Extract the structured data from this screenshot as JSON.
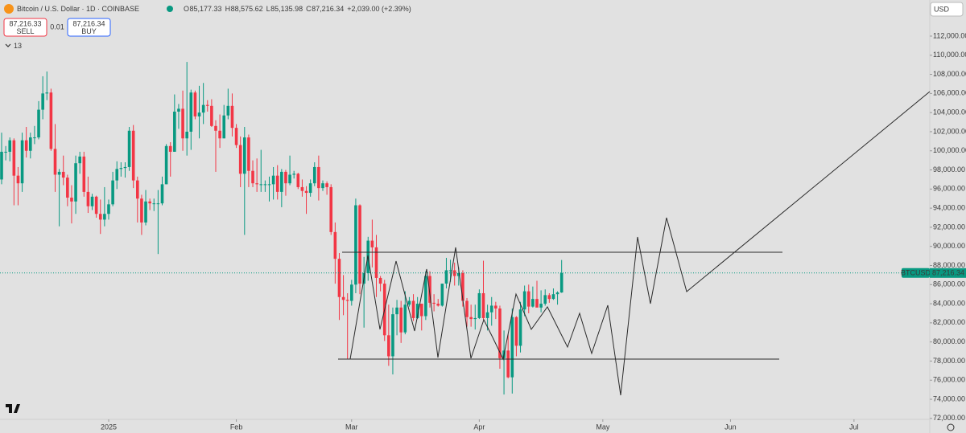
{
  "chart_data": {
    "type": "candlestick",
    "title": "Bitcoin / U.S. Dollar · 1D · COINBASE",
    "ohlc_labels": [
      "O",
      "H",
      "L",
      "C"
    ],
    "ohlc_text": [
      "85,177.33",
      "88,575.62",
      "85,135.98",
      "87,216.34"
    ],
    "change": "+2,039.00 (+2.39%)",
    "sell_price": "87,216.33",
    "sell_label": "SELL",
    "spread": "0.01",
    "buy_price": "87,216.34",
    "buy_label": "BUY",
    "indicator_count": "13",
    "currency": "USD",
    "symbol_tag": "BTCUSD",
    "last_price": {
      "value": 87216.34,
      "label": "87,216.34"
    },
    "up_color": "#089981",
    "down_color": "#f23645",
    "grid": false,
    "xlim": [
      -0.39,
      225.4
    ],
    "xticks": [
      {
        "value": 26,
        "label": "2025"
      },
      {
        "value": 57,
        "label": "Feb"
      },
      {
        "value": 85,
        "label": "Mar"
      },
      {
        "value": 116,
        "label": "Apr"
      },
      {
        "value": 146,
        "label": "May"
      },
      {
        "value": 177,
        "label": "Jun"
      },
      {
        "value": 207,
        "label": "Jul"
      }
    ],
    "ylim": [
      72070,
      115780
    ],
    "yticks": [
      {
        "value": 72000,
        "label": "72,000.00"
      },
      {
        "value": 74000,
        "label": "74,000.00"
      },
      {
        "value": 76000,
        "label": "76,000.00"
      },
      {
        "value": 78000,
        "label": "78,000.00"
      },
      {
        "value": 80000,
        "label": "80,000.00"
      },
      {
        "value": 82000,
        "label": "82,000.00"
      },
      {
        "value": 84000,
        "label": "84,000.00"
      },
      {
        "value": 86000,
        "label": "86,000.00"
      },
      {
        "value": 88000,
        "label": "88,000.00"
      },
      {
        "value": 90000,
        "label": "90,000.00"
      },
      {
        "value": 92000,
        "label": "92,000.00"
      },
      {
        "value": 94000,
        "label": "94,000.00"
      },
      {
        "value": 96000,
        "label": "96,000.00"
      },
      {
        "value": 98000,
        "label": "98,000.00"
      },
      {
        "value": 100000,
        "label": "100,000.00"
      },
      {
        "value": 102000,
        "label": "102,000.00"
      },
      {
        "value": 104000,
        "label": "104,000.00"
      },
      {
        "value": 106000,
        "label": "106,000.00"
      },
      {
        "value": 108000,
        "label": "108,000.00"
      },
      {
        "value": 110000,
        "label": "110,000.00"
      },
      {
        "value": 112000,
        "label": "112,000.00"
      }
    ],
    "open": [
      97000,
      99900,
      99900,
      101100,
      97400,
      96600,
      101100,
      100000,
      101400,
      101400,
      104300,
      106000,
      106100,
      100200,
      97500,
      97800,
      97200,
      95100,
      94700,
      98700,
      99400,
      95700,
      94200,
      95200,
      93400,
      92800,
      93400,
      94400,
      96900,
      98100,
      98200,
      98300,
      102100,
      96900,
      95000,
      92500,
      94700,
      94500,
      94500,
      94500,
      96500,
      100500,
      99900,
      104100,
      104400,
      101300,
      102000,
      106100,
      103600,
      104000,
      104800,
      104700,
      102600,
      102100,
      101300,
      103700,
      104700,
      102400,
      100600,
      97600,
      101400,
      97900,
      96600,
      96500,
      96500,
      96500,
      96500,
      97400,
      95700,
      97800,
      96600,
      97500,
      97600,
      96200,
      95800,
      95600,
      96600,
      98300,
      96100,
      96600,
      96200,
      91500,
      88700,
      84700,
      84400,
      84300,
      86000,
      94300,
      86100,
      87200,
      90600,
      89900,
      86700,
      86100,
      80700,
      78500,
      82900,
      83600,
      81000,
      83900,
      84300,
      82500,
      84000,
      82700,
      86900,
      84100,
      84000,
      83800,
      86100,
      87500,
      87500,
      86900,
      87200,
      84300,
      82600,
      82400,
      82500,
      85100,
      82500,
      83100,
      83800,
      83500,
      78300,
      79100,
      76300,
      82600,
      79600,
      83400,
      85300,
      83700,
      84500,
      83600,
      84000,
      84900,
      84500,
      85000,
      85177.33
    ],
    "high": [
      101900,
      100500,
      101400,
      101300,
      98300,
      101900,
      102500,
      101900,
      102600,
      105200,
      107800,
      108300,
      106500,
      102800,
      98100,
      99500,
      97500,
      96400,
      99500,
      99900,
      99900,
      97300,
      95500,
      95300,
      94900,
      96200,
      94900,
      97800,
      98900,
      98800,
      98800,
      102500,
      102700,
      97300,
      95400,
      95900,
      95000,
      95000,
      95900,
      97300,
      100700,
      100900,
      105900,
      104900,
      106300,
      109300,
      106400,
      106300,
      106800,
      107100,
      105300,
      105400,
      103200,
      103800,
      104800,
      106500,
      106000,
      102800,
      101500,
      102500,
      101700,
      99000,
      99200,
      100100,
      96900,
      97300,
      98300,
      98500,
      98100,
      98000,
      99500,
      97900,
      97700,
      97000,
      96300,
      97000,
      98800,
      99500,
      96900,
      96800,
      96500,
      92500,
      89300,
      87000,
      85100,
      86500,
      95000,
      94400,
      88900,
      91000,
      92800,
      91200,
      86900,
      86500,
      83900,
      83600,
      84400,
      84300,
      85300,
      84700,
      85000,
      84700,
      84000,
      87400,
      87400,
      85000,
      84500,
      86100,
      88800,
      88600,
      88300,
      87800,
      87500,
      84600,
      83900,
      83900,
      85500,
      88500,
      83900,
      84700,
      84200,
      83800,
      81200,
      80800,
      83500,
      82700,
      84200,
      85900,
      86000,
      85800,
      86400,
      85400,
      85500,
      85100,
      85600,
      85300,
      88575.62
    ],
    "low": [
      96500,
      99000,
      98900,
      94300,
      94300,
      95700,
      99300,
      99200,
      100700,
      101200,
      103300,
      105300,
      100000,
      95700,
      92100,
      96400,
      94200,
      92400,
      93400,
      97600,
      95200,
      93500,
      93800,
      93000,
      91300,
      92100,
      92800,
      94200,
      96000,
      97300,
      97200,
      97900,
      96100,
      92500,
      91200,
      92200,
      93800,
      93700,
      89200,
      94300,
      96500,
      97300,
      99900,
      102300,
      100000,
      99500,
      100100,
      103300,
      101300,
      102800,
      104100,
      102500,
      97800,
      100300,
      101300,
      103300,
      101500,
      100300,
      96200,
      91200,
      96200,
      96200,
      95700,
      95700,
      95700,
      94700,
      94900,
      94900,
      94100,
      95300,
      96400,
      97100,
      96000,
      95200,
      93400,
      95200,
      96300,
      94800,
      95800,
      95400,
      91200,
      86100,
      82300,
      82800,
      78200,
      83800,
      85100,
      85000,
      81500,
      86400,
      87800,
      84700,
      85300,
      80100,
      77500,
      76600,
      80700,
      79900,
      80800,
      83700,
      82200,
      82400,
      81200,
      82300,
      83600,
      83200,
      83700,
      83700,
      85600,
      86300,
      85900,
      85900,
      83700,
      81600,
      81600,
      81300,
      82400,
      82300,
      81200,
      81700,
      82400,
      77200,
      74500,
      76200,
      74600,
      78500,
      78900,
      82700,
      83000,
      83600,
      83600,
      83100,
      83800,
      84100,
      84400,
      83900,
      85135.98
    ],
    "close": [
      99900,
      99900,
      101100,
      97400,
      96600,
      101100,
      100000,
      101400,
      101400,
      104300,
      106000,
      106100,
      100200,
      97500,
      97800,
      97200,
      95100,
      94700,
      98700,
      99400,
      95700,
      94200,
      95200,
      93400,
      92800,
      93400,
      94400,
      96900,
      98100,
      98200,
      98300,
      102100,
      96900,
      95000,
      92500,
      94700,
      94500,
      94500,
      94500,
      96500,
      100500,
      99900,
      104100,
      104400,
      101300,
      102000,
      106100,
      103600,
      104000,
      104800,
      104700,
      102600,
      102100,
      101300,
      103700,
      104700,
      102400,
      100600,
      97600,
      101400,
      97900,
      96600,
      96500,
      96500,
      96500,
      96500,
      97400,
      95700,
      97800,
      96600,
      97500,
      97600,
      96200,
      95800,
      95600,
      96600,
      98300,
      96100,
      96600,
      96200,
      91500,
      88700,
      84700,
      84400,
      84300,
      86000,
      94300,
      86100,
      87200,
      90600,
      89900,
      86700,
      86100,
      80700,
      78500,
      82900,
      83600,
      81000,
      83900,
      84300,
      82500,
      84000,
      82700,
      86900,
      84100,
      84000,
      83800,
      86100,
      87500,
      87500,
      86900,
      87200,
      84300,
      82600,
      82400,
      82500,
      85100,
      82500,
      83100,
      83800,
      83500,
      78300,
      79100,
      76300,
      82600,
      79600,
      83400,
      85300,
      83700,
      84500,
      83600,
      84000,
      84900,
      84500,
      85000,
      85177.33,
      87216.34
    ]
  }
}
